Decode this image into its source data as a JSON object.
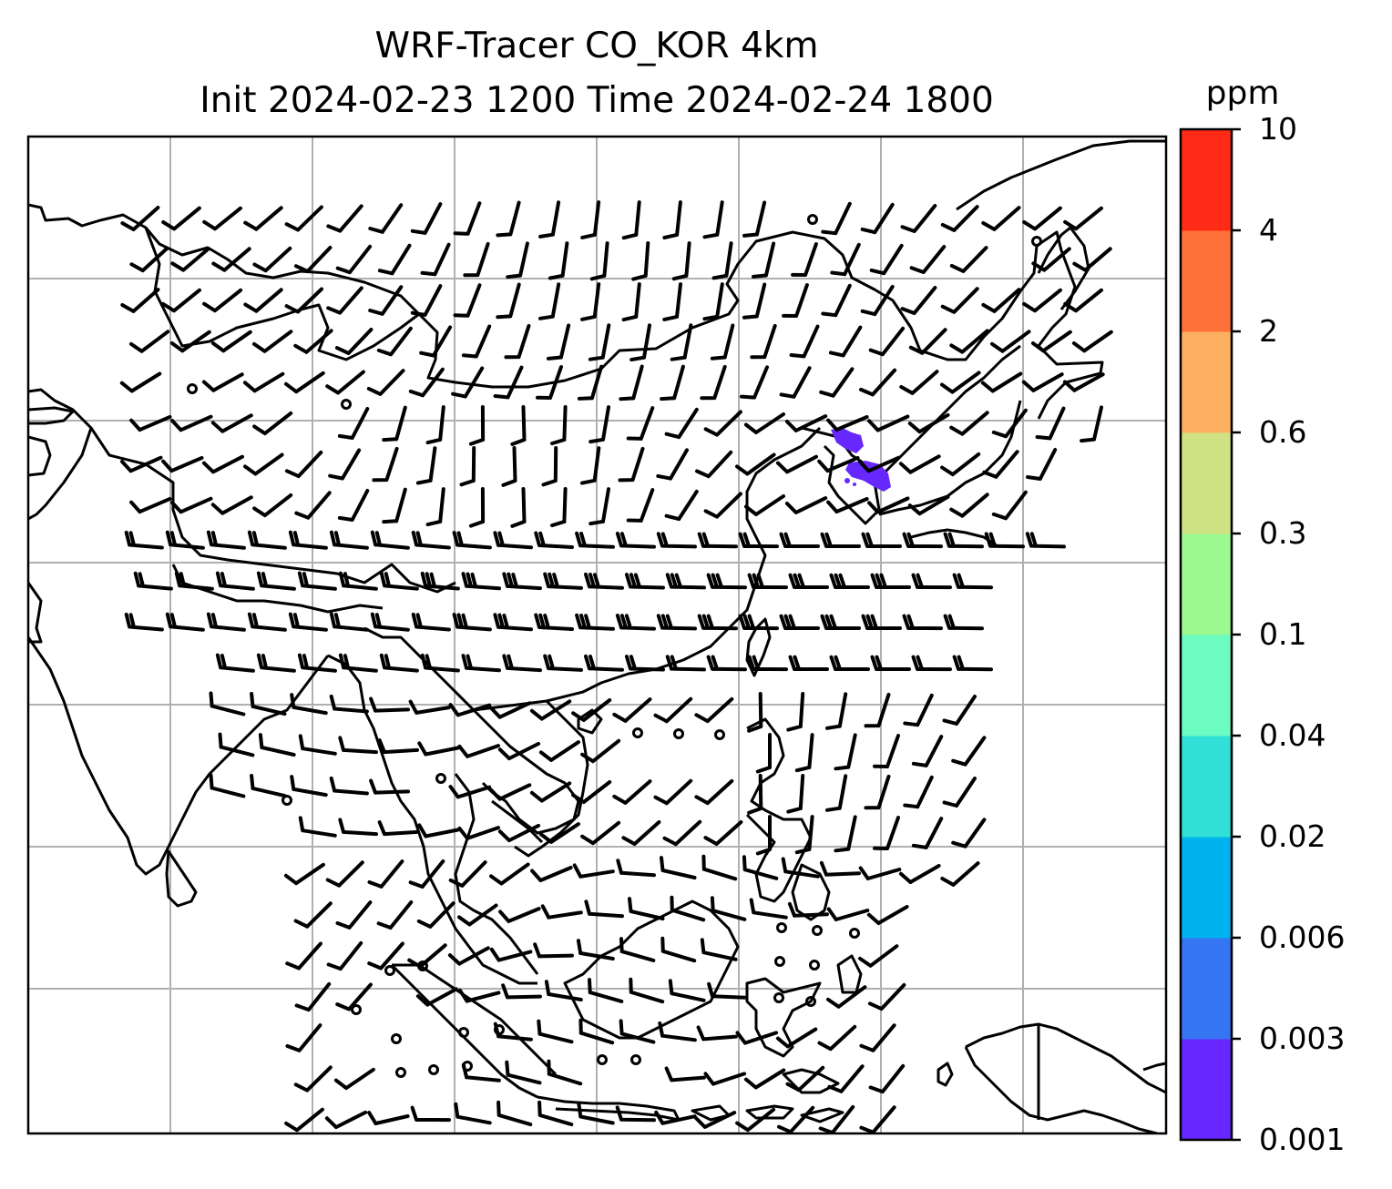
{
  "title": {
    "line1": "WRF-Tracer CO_KOR 4km",
    "line2": "Init 2024-02-23 1200 Time 2024-02-24 1800"
  },
  "colorbar": {
    "unit": "ppm",
    "levels": [
      "0.001",
      "0.003",
      "0.006",
      "0.02",
      "0.04",
      "0.1",
      "0.3",
      "0.6",
      "2",
      "4",
      "10"
    ],
    "colors": [
      "#6628ff",
      "#3575f2",
      "#00b3ee",
      "#30e0d6",
      "#6cfbc1",
      "#9bf991",
      "#cfe283",
      "#fdb160",
      "#ff7138",
      "#ff2b17"
    ]
  },
  "map": {
    "gridlines": true,
    "tracer_color": "#6628ff",
    "coastline_color": "#000000",
    "gridline_color": "#b0b0b0"
  }
}
